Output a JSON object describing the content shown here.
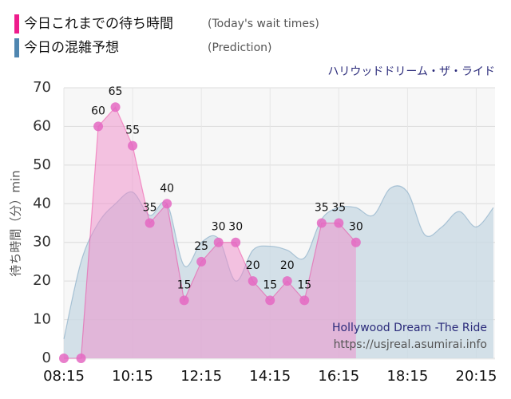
{
  "chart_data": {
    "type": "area",
    "subtitle": "ハリウッドドリーム・ザ・ライド",
    "y_label": "待ち時間（分）min",
    "annotations": [
      "Hollywood Dream -The Ride",
      "https://usjreal.asumirai.info"
    ],
    "xlim": [
      "08:15",
      "20:45"
    ],
    "xticks": [
      "08:15",
      "10:15",
      "12:15",
      "14:15",
      "16:15",
      "18:15",
      "20:15"
    ],
    "ylim": [
      0,
      70
    ],
    "yticks": [
      0,
      10,
      20,
      30,
      40,
      50,
      60,
      70
    ],
    "grid": true,
    "series": [
      {
        "name": "今日の混雑予想",
        "name_en": "(Prediction)",
        "color": "#4f86b0",
        "fill": "#c9d9e4",
        "x": [
          "08:15",
          "08:45",
          "09:15",
          "09:45",
          "10:15",
          "10:45",
          "11:15",
          "11:45",
          "12:15",
          "12:45",
          "13:15",
          "13:45",
          "14:15",
          "14:45",
          "15:15",
          "15:45",
          "16:15",
          "16:45",
          "17:15",
          "17:45",
          "18:15",
          "18:45",
          "19:15",
          "19:45",
          "20:15",
          "20:45"
        ],
        "values": [
          5,
          25,
          35,
          40,
          43,
          37,
          40,
          24,
          30,
          31,
          20,
          28,
          29,
          28,
          26,
          36,
          39,
          39,
          37,
          44,
          43,
          32,
          34,
          38,
          34,
          39
        ]
      },
      {
        "name": "今日これまでの待ち時間",
        "name_en": "(Today's wait times)",
        "color": "#ee1c8c",
        "fill": "#f08cca",
        "x": [
          "08:15",
          "08:45",
          "09:15",
          "09:45",
          "10:15",
          "10:45",
          "11:15",
          "11:45",
          "12:15",
          "12:45",
          "13:15",
          "13:45",
          "14:15",
          "14:45",
          "15:15",
          "15:45",
          "16:15",
          "16:45"
        ],
        "values": [
          0,
          0,
          60,
          65,
          55,
          35,
          40,
          15,
          25,
          30,
          30,
          20,
          15,
          20,
          15,
          35,
          35,
          30
        ]
      }
    ]
  }
}
